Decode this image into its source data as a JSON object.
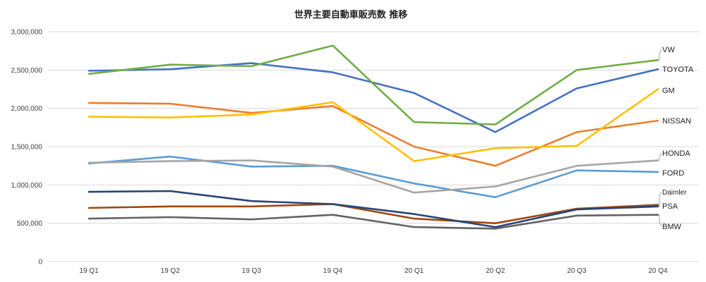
{
  "chart_data": {
    "type": "line",
    "title": "世界主要自動車販売数 推移",
    "xlabel": "",
    "ylabel": "",
    "categories": [
      "19 Q1",
      "19 Q2",
      "19 Q3",
      "19 Q4",
      "20 Q1",
      "20 Q2",
      "20 Q3",
      "20 Q4"
    ],
    "ylim": [
      0,
      3000000
    ],
    "yticks": [
      0,
      500000,
      1000000,
      1500000,
      2000000,
      2500000,
      3000000
    ],
    "ytick_labels": [
      "0",
      "500,000",
      "1,000,000",
      "1,500,000",
      "2,000,000",
      "2,500,000",
      "3,000,000"
    ],
    "grid": true,
    "legend": "end-labels-right",
    "series": [
      {
        "name": "VW",
        "color": "#70ad47",
        "values": [
          2450000,
          2570000,
          2550000,
          2820000,
          1820000,
          1790000,
          2500000,
          2630000
        ]
      },
      {
        "name": "TOYOTA",
        "color": "#4472c4",
        "values": [
          2490000,
          2510000,
          2590000,
          2470000,
          2200000,
          1690000,
          2260000,
          2510000
        ]
      },
      {
        "name": "GM",
        "color": "#ffc000",
        "values": [
          1890000,
          1880000,
          1920000,
          2080000,
          1310000,
          1480000,
          1510000,
          2250000
        ]
      },
      {
        "name": "NISSAN",
        "color": "#ed7d31",
        "values": [
          2070000,
          2060000,
          1940000,
          2030000,
          1500000,
          1250000,
          1690000,
          1840000
        ]
      },
      {
        "name": "HONDA",
        "color": "#a5a5a5",
        "values": [
          1290000,
          1310000,
          1320000,
          1240000,
          900000,
          980000,
          1250000,
          1320000
        ]
      },
      {
        "name": "FORD",
        "color": "#5b9bd5",
        "values": [
          1280000,
          1370000,
          1240000,
          1250000,
          1020000,
          840000,
          1190000,
          1170000
        ]
      },
      {
        "name": "Daimler",
        "color": "#264478",
        "values": [
          910000,
          920000,
          790000,
          750000,
          620000,
          450000,
          680000,
          720000
        ]
      },
      {
        "name": "PSA",
        "color": "#9e480e",
        "values": [
          700000,
          720000,
          720000,
          750000,
          560000,
          500000,
          690000,
          740000
        ]
      },
      {
        "name": "BMW",
        "color": "#636363",
        "values": [
          560000,
          580000,
          550000,
          610000,
          450000,
          430000,
          600000,
          610000
        ]
      }
    ]
  }
}
